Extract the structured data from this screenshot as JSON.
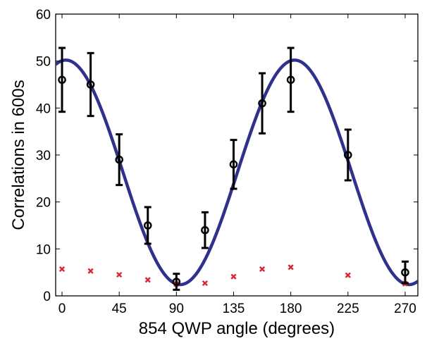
{
  "chart_data": {
    "type": "scatter",
    "title": "",
    "xlabel": "854 QWP angle (degrees)",
    "ylabel": "Correlations in 600s",
    "xlim": [
      -5,
      280
    ],
    "ylim": [
      0,
      60
    ],
    "xticks": [
      0,
      45,
      90,
      135,
      180,
      225,
      270
    ],
    "yticks": [
      0,
      10,
      20,
      30,
      40,
      50,
      60
    ],
    "grid": false,
    "legend": "none",
    "series": [
      {
        "kind": "points-with-errorbars",
        "marker": "open-circle",
        "color": "#000000",
        "x": [
          0,
          22.5,
          45,
          67.5,
          90,
          112.5,
          135,
          157.5,
          180,
          225,
          270
        ],
        "y": [
          46,
          45,
          29,
          15,
          3,
          14,
          28,
          41,
          46,
          30,
          5
        ],
        "err_low": [
          39.2,
          38.3,
          23.6,
          11.1,
          1.3,
          10.2,
          22.8,
          34.6,
          39.2,
          24.6,
          2.7
        ],
        "err_high": [
          52.8,
          51.7,
          34.4,
          18.9,
          4.7,
          17.8,
          33.2,
          47.4,
          52.8,
          35.4,
          7.3
        ]
      },
      {
        "kind": "points",
        "marker": "x",
        "color": "#e8202a",
        "x": [
          0,
          22.5,
          45,
          67.5,
          90,
          112.5,
          135,
          157.5,
          180,
          225,
          270
        ],
        "y": [
          5.7,
          5.3,
          4.5,
          3.4,
          2.5,
          2.7,
          4.1,
          5.7,
          6.1,
          4.4,
          2.6
        ]
      },
      {
        "kind": "fit-curve",
        "color": "#2e3192",
        "function": "y = A + B*cos(2*(x - x0))",
        "params": {
          "A": 26.3,
          "B": 23.9,
          "x0": 3
        }
      }
    ]
  }
}
